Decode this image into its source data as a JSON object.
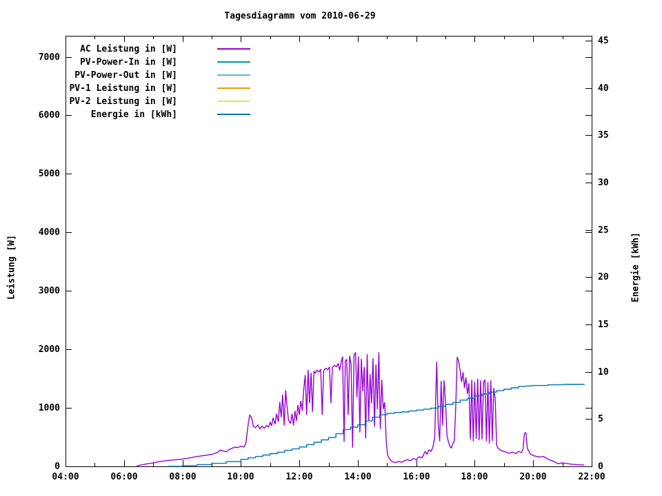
{
  "title": "Tagesdiagramm vom 2010-06-29",
  "axes": {
    "x": {
      "range": [
        4,
        22
      ],
      "major_tick_hours": [
        4,
        6,
        8,
        10,
        12,
        14,
        16,
        18,
        20,
        22
      ],
      "major_tick_labels": [
        "04:00",
        "06:00",
        "08:00",
        "10:00",
        "12:00",
        "14:00",
        "16:00",
        "18:00",
        "20:00",
        "22:00"
      ],
      "minor_tick_hours": [
        5,
        7,
        9,
        11,
        13,
        15,
        17,
        19,
        21
      ]
    },
    "y_left": {
      "label": "Leistung [W]",
      "range": [
        0,
        7360
      ],
      "tick_values": [
        0,
        1000,
        2000,
        3000,
        4000,
        5000,
        6000,
        7000
      ],
      "tick_labels": [
        "0",
        "1000",
        "2000",
        "3000",
        "4000",
        "5000",
        "6000",
        "7000"
      ]
    },
    "y_right": {
      "label": "Energie [kWh]",
      "range": [
        0,
        45.5
      ],
      "tick_values": [
        0,
        5,
        10,
        15,
        20,
        25,
        30,
        35,
        40,
        45
      ],
      "tick_labels": [
        "0",
        "5",
        "10",
        "15",
        "20",
        "25",
        "30",
        "35",
        "40",
        "45"
      ]
    }
  },
  "legend": [
    {
      "label": "AC Leistung in [W]",
      "color": "#9400D3"
    },
    {
      "label": "PV-Power-In in [W]",
      "color": "#009999"
    },
    {
      "label": "PV-Power-Out in [W]",
      "color": "#56B4E9"
    },
    {
      "label": "PV-1 Leistung in [W]",
      "color": "#E69F00"
    },
    {
      "label": "PV-2 Leistung in [W]",
      "color": "#F0E442"
    },
    {
      "label": "Energie in [kWh]",
      "color": "#0072B2"
    }
  ],
  "chart_data": {
    "type": "line",
    "title": "Tagesdiagramm vom 2010-06-29",
    "xlabel": "",
    "x_unit": "hour of day",
    "x_range": [
      4,
      22
    ],
    "ylabel_left": "Leistung [W]",
    "ylabel_right": "Energie [kWh]",
    "y_left_range": [
      0,
      7360
    ],
    "y_right_range": [
      0,
      45.5
    ],
    "grid": false,
    "legend_position": "top-left inside",
    "series": [
      {
        "name": "AC Leistung in [W]",
        "color": "#9400D3",
        "axis": "left",
        "style": "lines",
        "points": [
          [
            6.43,
            10
          ],
          [
            6.6,
            25
          ],
          [
            6.8,
            45
          ],
          [
            7.0,
            60
          ],
          [
            7.2,
            80
          ],
          [
            7.4,
            95
          ],
          [
            7.6,
            105
          ],
          [
            7.8,
            115
          ],
          [
            8.0,
            125
          ],
          [
            8.2,
            140
          ],
          [
            8.4,
            160
          ],
          [
            8.6,
            175
          ],
          [
            8.8,
            190
          ],
          [
            9.0,
            205
          ],
          [
            9.2,
            235
          ],
          [
            9.3,
            280
          ],
          [
            9.4,
            260
          ],
          [
            9.5,
            250
          ],
          [
            9.6,
            290
          ],
          [
            9.7,
            310
          ],
          [
            9.8,
            330
          ],
          [
            9.9,
            320
          ],
          [
            10.0,
            345
          ],
          [
            10.1,
            330
          ],
          [
            10.17,
            390
          ],
          [
            10.25,
            720
          ],
          [
            10.3,
            880
          ],
          [
            10.37,
            830
          ],
          [
            10.42,
            690
          ],
          [
            10.5,
            660
          ],
          [
            10.58,
            710
          ],
          [
            10.65,
            640
          ],
          [
            10.72,
            690
          ],
          [
            10.8,
            650
          ],
          [
            10.88,
            700
          ],
          [
            10.95,
            670
          ],
          [
            11.0,
            760
          ],
          [
            11.05,
            690
          ],
          [
            11.1,
            830
          ],
          [
            11.17,
            720
          ],
          [
            11.22,
            900
          ],
          [
            11.28,
            760
          ],
          [
            11.33,
            1100
          ],
          [
            11.38,
            840
          ],
          [
            11.43,
            1230
          ],
          [
            11.48,
            700
          ],
          [
            11.53,
            1300
          ],
          [
            11.58,
            1020
          ],
          [
            11.63,
            790
          ],
          [
            11.7,
            730
          ],
          [
            11.75,
            900
          ],
          [
            11.8,
            700
          ],
          [
            11.85,
            950
          ],
          [
            11.9,
            780
          ],
          [
            11.95,
            1050
          ],
          [
            12.0,
            880
          ],
          [
            12.05,
            1120
          ],
          [
            12.1,
            950
          ],
          [
            12.15,
            1320
          ],
          [
            12.2,
            1560
          ],
          [
            12.25,
            880
          ],
          [
            12.3,
            1650
          ],
          [
            12.35,
            1080
          ],
          [
            12.4,
            1600
          ],
          [
            12.45,
            930
          ],
          [
            12.5,
            1630
          ],
          [
            12.55,
            1590
          ],
          [
            12.6,
            1650
          ],
          [
            12.67,
            1610
          ],
          [
            12.73,
            1660
          ],
          [
            12.78,
            880
          ],
          [
            12.83,
            1630
          ],
          [
            12.9,
            1680
          ],
          [
            12.97,
            1650
          ],
          [
            13.03,
            1700
          ],
          [
            13.08,
            1080
          ],
          [
            13.13,
            1690
          ],
          [
            13.2,
            1730
          ],
          [
            13.27,
            1700
          ],
          [
            13.33,
            1760
          ],
          [
            13.38,
            1640
          ],
          [
            13.43,
            1780
          ],
          [
            13.48,
            1880
          ],
          [
            13.53,
            420
          ],
          [
            13.57,
            1800
          ],
          [
            13.62,
            1830
          ],
          [
            13.67,
            880
          ],
          [
            13.72,
            1890
          ],
          [
            13.77,
            1740
          ],
          [
            13.82,
            320
          ],
          [
            13.87,
            1900
          ],
          [
            13.92,
            1950
          ],
          [
            13.97,
            1180
          ],
          [
            14.02,
            1880
          ],
          [
            14.07,
            580
          ],
          [
            14.12,
            1840
          ],
          [
            14.17,
            1280
          ],
          [
            14.22,
            1700
          ],
          [
            14.27,
            480
          ],
          [
            14.32,
            1920
          ],
          [
            14.37,
            780
          ],
          [
            14.42,
            1580
          ],
          [
            14.47,
            1080
          ],
          [
            14.52,
            1850
          ],
          [
            14.57,
            680
          ],
          [
            14.62,
            1740
          ],
          [
            14.67,
            980
          ],
          [
            14.72,
            1950
          ],
          [
            14.77,
            640
          ],
          [
            14.82,
            1480
          ],
          [
            14.87,
            980
          ],
          [
            14.92,
            1100
          ],
          [
            14.97,
            440
          ],
          [
            15.02,
            190
          ],
          [
            15.07,
            140
          ],
          [
            15.13,
            100
          ],
          [
            15.2,
            75
          ],
          [
            15.3,
            65
          ],
          [
            15.4,
            85
          ],
          [
            15.5,
            70
          ],
          [
            15.6,
            95
          ],
          [
            15.7,
            115
          ],
          [
            15.8,
            95
          ],
          [
            15.9,
            135
          ],
          [
            16.0,
            115
          ],
          [
            16.1,
            165
          ],
          [
            16.2,
            145
          ],
          [
            16.3,
            255
          ],
          [
            16.37,
            205
          ],
          [
            16.43,
            285
          ],
          [
            16.5,
            255
          ],
          [
            16.57,
            330
          ],
          [
            16.63,
            500
          ],
          [
            16.7,
            1790
          ],
          [
            16.75,
            720
          ],
          [
            16.8,
            430
          ],
          [
            16.85,
            1460
          ],
          [
            16.9,
            700
          ],
          [
            16.95,
            1470
          ],
          [
            17.0,
            1100
          ],
          [
            17.05,
            520
          ],
          [
            17.1,
            420
          ],
          [
            17.15,
            340
          ],
          [
            17.2,
            310
          ],
          [
            17.25,
            390
          ],
          [
            17.3,
            430
          ],
          [
            17.35,
            1020
          ],
          [
            17.4,
            1870
          ],
          [
            17.45,
            1800
          ],
          [
            17.5,
            1640
          ],
          [
            17.55,
            1440
          ],
          [
            17.6,
            1610
          ],
          [
            17.65,
            1340
          ],
          [
            17.7,
            1520
          ],
          [
            17.75,
            1240
          ],
          [
            17.8,
            1420
          ],
          [
            17.85,
            460
          ],
          [
            17.9,
            1480
          ],
          [
            17.95,
            430
          ],
          [
            18.0,
            1450
          ],
          [
            18.05,
            470
          ],
          [
            18.1,
            1500
          ],
          [
            18.15,
            450
          ],
          [
            18.2,
            1470
          ],
          [
            18.25,
            460
          ],
          [
            18.3,
            1440
          ],
          [
            18.35,
            1480
          ],
          [
            18.4,
            430
          ],
          [
            18.45,
            1440
          ],
          [
            18.5,
            390
          ],
          [
            18.55,
            1470
          ],
          [
            18.6,
            430
          ],
          [
            18.65,
            1340
          ],
          [
            18.7,
            1150
          ],
          [
            18.75,
            360
          ],
          [
            18.8,
            310
          ],
          [
            18.9,
            270
          ],
          [
            19.0,
            255
          ],
          [
            19.1,
            235
          ],
          [
            19.2,
            225
          ],
          [
            19.3,
            245
          ],
          [
            19.4,
            215
          ],
          [
            19.5,
            255
          ],
          [
            19.6,
            235
          ],
          [
            19.65,
            290
          ],
          [
            19.7,
            560
          ],
          [
            19.75,
            580
          ],
          [
            19.8,
            310
          ],
          [
            19.9,
            210
          ],
          [
            20.0,
            185
          ],
          [
            20.2,
            160
          ],
          [
            20.35,
            170
          ],
          [
            20.5,
            125
          ],
          [
            20.7,
            85
          ],
          [
            20.85,
            45
          ],
          [
            21.0,
            60
          ],
          [
            21.15,
            50
          ],
          [
            21.3,
            38
          ],
          [
            21.5,
            28
          ],
          [
            21.75,
            22
          ]
        ]
      },
      {
        "name": "PV-Power-In in [W]",
        "color": "#009999",
        "axis": "left",
        "style": "lines",
        "points": []
      },
      {
        "name": "PV-Power-Out in [W]",
        "color": "#56B4E9",
        "axis": "left",
        "style": "lines",
        "points": []
      },
      {
        "name": "PV-1 Leistung in [W]",
        "color": "#E69F00",
        "axis": "left",
        "style": "lines",
        "points": []
      },
      {
        "name": "PV-2 Leistung in [W]",
        "color": "#F0E442",
        "axis": "left",
        "style": "lines",
        "points": []
      },
      {
        "name": "Energie in [kWh]",
        "color": "#0072B2",
        "axis": "right",
        "style": "steps",
        "points": [
          [
            7.5,
            0
          ],
          [
            8.0,
            0.08
          ],
          [
            8.5,
            0.18
          ],
          [
            9.0,
            0.32
          ],
          [
            9.5,
            0.5
          ],
          [
            10.0,
            0.75
          ],
          [
            10.25,
            0.9
          ],
          [
            10.5,
            1.05
          ],
          [
            10.75,
            1.2
          ],
          [
            11.0,
            1.35
          ],
          [
            11.25,
            1.5
          ],
          [
            11.5,
            1.7
          ],
          [
            11.75,
            1.85
          ],
          [
            12.0,
            2.05
          ],
          [
            12.25,
            2.3
          ],
          [
            12.5,
            2.55
          ],
          [
            12.75,
            2.8
          ],
          [
            13.0,
            3.05
          ],
          [
            13.25,
            3.45
          ],
          [
            13.5,
            3.9
          ],
          [
            13.75,
            4.15
          ],
          [
            14.0,
            4.4
          ],
          [
            14.25,
            4.8
          ],
          [
            14.5,
            5.2
          ],
          [
            14.75,
            5.45
          ],
          [
            15.0,
            5.6
          ],
          [
            15.25,
            5.7
          ],
          [
            15.5,
            5.75
          ],
          [
            15.75,
            5.85
          ],
          [
            16.0,
            5.95
          ],
          [
            16.25,
            6.05
          ],
          [
            16.5,
            6.15
          ],
          [
            16.75,
            6.35
          ],
          [
            17.0,
            6.55
          ],
          [
            17.25,
            6.75
          ],
          [
            17.5,
            7.0
          ],
          [
            17.75,
            7.2
          ],
          [
            18.0,
            7.45
          ],
          [
            18.25,
            7.65
          ],
          [
            18.5,
            7.85
          ],
          [
            18.75,
            8.0
          ],
          [
            19.0,
            8.15
          ],
          [
            19.25,
            8.3
          ],
          [
            19.5,
            8.45
          ],
          [
            19.75,
            8.5
          ],
          [
            20.0,
            8.55
          ],
          [
            20.5,
            8.62
          ],
          [
            21.0,
            8.66
          ],
          [
            21.75,
            8.7
          ]
        ]
      }
    ]
  }
}
